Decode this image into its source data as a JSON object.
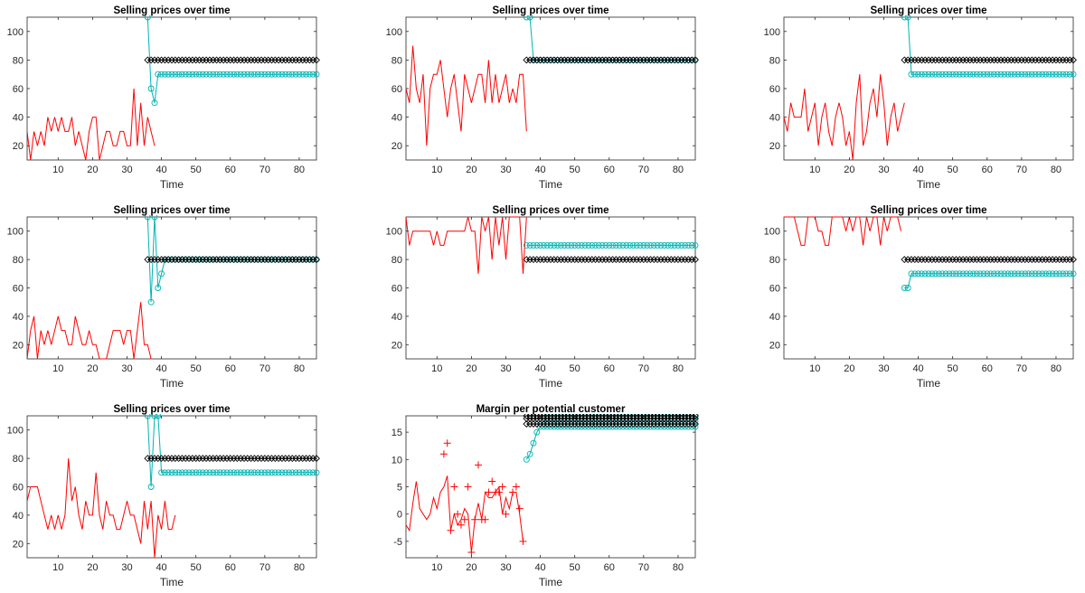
{
  "chart_data": [
    {
      "type": "line",
      "title": "Selling prices over time",
      "xlabel": "Time",
      "xlim": [
        1,
        85
      ],
      "ylim": [
        10,
        110
      ],
      "xticks": [
        10,
        20,
        30,
        40,
        50,
        60,
        70,
        80
      ],
      "yticks": [
        20,
        40,
        60,
        80,
        100
      ],
      "colors": {
        "red": "#ff0000",
        "cyan": "#00b3b3",
        "black": "#000000"
      },
      "series": [
        {
          "color": "red",
          "style": "line",
          "x_start": 1,
          "values": [
            30,
            10,
            30,
            20,
            30,
            20,
            40,
            30,
            40,
            30,
            40,
            30,
            30,
            40,
            20,
            30,
            20,
            10,
            30,
            40,
            40,
            10,
            20,
            30,
            30,
            20,
            20,
            30,
            30,
            20,
            20,
            60,
            20,
            50,
            20,
            40,
            30,
            20
          ]
        },
        {
          "color": "cyan",
          "style": "line-marker",
          "marker": "o",
          "x": [
            36,
            37,
            38,
            39,
            40,
            41,
            42,
            43,
            44,
            45,
            46,
            47,
            48,
            49,
            50,
            51,
            52,
            53,
            54,
            55,
            56,
            57,
            58,
            59,
            60,
            61,
            62,
            63,
            64,
            65,
            66,
            67,
            68,
            69,
            70,
            71,
            72,
            73,
            74,
            75,
            76,
            77,
            78,
            79,
            80,
            81,
            82,
            83,
            84,
            85
          ],
          "values": [
            110,
            60,
            50,
            70,
            70,
            70,
            70,
            70,
            70,
            70,
            70,
            70,
            70,
            70,
            70,
            70,
            70,
            70,
            70,
            70,
            70,
            70,
            70,
            70,
            70,
            70,
            70,
            70,
            70,
            70,
            70,
            70,
            70,
            70,
            70,
            70,
            70,
            70,
            70,
            70,
            70,
            70,
            70,
            70,
            70,
            70,
            70,
            70,
            70,
            70
          ]
        },
        {
          "color": "black",
          "style": "line-marker",
          "marker": "diamond",
          "x_start": 36,
          "x_end": 85,
          "constant": 80
        }
      ]
    },
    {
      "type": "line",
      "title": "Selling prices over time",
      "xlabel": "Time",
      "xlim": [
        1,
        85
      ],
      "ylim": [
        10,
        110
      ],
      "xticks": [
        10,
        20,
        30,
        40,
        50,
        60,
        70,
        80
      ],
      "yticks": [
        20,
        40,
        60,
        80,
        100
      ],
      "series": [
        {
          "color": "red",
          "style": "line",
          "x_start": 1,
          "values": [
            60,
            50,
            90,
            60,
            50,
            70,
            20,
            60,
            70,
            70,
            80,
            60,
            40,
            60,
            70,
            50,
            30,
            70,
            60,
            50,
            60,
            70,
            70,
            50,
            80,
            50,
            70,
            50,
            60,
            70,
            50,
            60,
            50,
            70,
            70,
            30
          ]
        },
        {
          "color": "cyan",
          "style": "line-marker",
          "marker": "o",
          "x_start": 36,
          "x_end": 85,
          "head": [
            110,
            110
          ],
          "constant": 80
        },
        {
          "color": "black",
          "style": "line-marker",
          "marker": "diamond",
          "x_start": 36,
          "x_end": 85,
          "constant": 80
        }
      ]
    },
    {
      "type": "line",
      "title": "Selling prices over time",
      "xlabel": "Time",
      "xlim": [
        1,
        85
      ],
      "ylim": [
        10,
        110
      ],
      "xticks": [
        10,
        20,
        30,
        40,
        50,
        60,
        70,
        80
      ],
      "yticks": [
        20,
        40,
        60,
        80,
        100
      ],
      "series": [
        {
          "color": "red",
          "style": "line",
          "x_start": 1,
          "values": [
            40,
            30,
            50,
            40,
            40,
            40,
            60,
            30,
            40,
            50,
            20,
            40,
            50,
            30,
            20,
            40,
            50,
            40,
            20,
            30,
            10,
            50,
            70,
            20,
            30,
            50,
            60,
            40,
            70,
            50,
            20,
            40,
            50,
            30,
            40,
            50
          ]
        },
        {
          "color": "cyan",
          "style": "line-marker",
          "marker": "o",
          "x_start": 36,
          "x_end": 85,
          "head": [
            110,
            110
          ],
          "constant": 70
        },
        {
          "color": "black",
          "style": "line-marker",
          "marker": "diamond",
          "x_start": 36,
          "x_end": 85,
          "constant": 80
        }
      ]
    },
    {
      "type": "line",
      "title": "Selling prices over time",
      "xlabel": "Time",
      "xlim": [
        1,
        85
      ],
      "ylim": [
        10,
        110
      ],
      "xticks": [
        10,
        20,
        30,
        40,
        50,
        60,
        70,
        80
      ],
      "yticks": [
        20,
        40,
        60,
        80,
        100
      ],
      "series": [
        {
          "color": "red",
          "style": "line",
          "x_start": 1,
          "values": [
            10,
            30,
            40,
            10,
            30,
            20,
            30,
            20,
            30,
            40,
            30,
            30,
            20,
            20,
            40,
            30,
            20,
            20,
            30,
            20,
            20,
            10,
            10,
            10,
            20,
            30,
            30,
            30,
            20,
            30,
            30,
            10,
            30,
            50,
            20,
            20,
            10
          ]
        },
        {
          "color": "cyan",
          "style": "line-marker",
          "marker": "o",
          "x_start": 36,
          "x_end": 85,
          "head": [
            110,
            50,
            110,
            60,
            70
          ],
          "constant": 80
        },
        {
          "color": "black",
          "style": "line-marker",
          "marker": "diamond",
          "x_start": 36,
          "x_end": 85,
          "constant": 80
        }
      ]
    },
    {
      "type": "line",
      "title": "Selling prices over time",
      "xlabel": "Time",
      "xlim": [
        1,
        85
      ],
      "ylim": [
        10,
        110
      ],
      "xticks": [
        10,
        20,
        30,
        40,
        50,
        60,
        70,
        80
      ],
      "yticks": [
        20,
        40,
        60,
        80,
        100
      ],
      "series": [
        {
          "color": "red",
          "style": "line",
          "x_start": 1,
          "values": [
            110,
            90,
            100,
            100,
            100,
            100,
            100,
            100,
            90,
            100,
            90,
            90,
            100,
            100,
            100,
            100,
            100,
            100,
            110,
            100,
            100,
            70,
            110,
            100,
            110,
            80,
            110,
            90,
            110,
            80,
            110,
            110,
            110,
            110,
            70,
            110
          ]
        },
        {
          "color": "cyan",
          "style": "line-marker",
          "marker": "o",
          "x_start": 36,
          "x_end": 85,
          "constant": 90
        },
        {
          "color": "black",
          "style": "line-marker",
          "marker": "diamond",
          "x_start": 36,
          "x_end": 85,
          "constant": 80
        }
      ]
    },
    {
      "type": "line",
      "title": "Selling prices over time",
      "xlabel": "Time",
      "xlim": [
        1,
        85
      ],
      "ylim": [
        10,
        110
      ],
      "xticks": [
        10,
        20,
        30,
        40,
        50,
        60,
        70,
        80
      ],
      "yticks": [
        20,
        40,
        60,
        80,
        100
      ],
      "series": [
        {
          "color": "red",
          "style": "line",
          "x_start": 1,
          "values": [
            110,
            110,
            110,
            110,
            100,
            90,
            90,
            110,
            110,
            110,
            100,
            100,
            90,
            90,
            110,
            110,
            110,
            110,
            100,
            110,
            100,
            110,
            110,
            90,
            110,
            100,
            110,
            110,
            90,
            110,
            100,
            110,
            110,
            110,
            100
          ]
        },
        {
          "color": "cyan",
          "style": "line-marker",
          "marker": "o",
          "x_start": 36,
          "x_end": 85,
          "head": [
            60,
            60
          ],
          "constant": 70
        },
        {
          "color": "black",
          "style": "line-marker",
          "marker": "diamond",
          "x_start": 36,
          "x_end": 85,
          "constant": 80
        }
      ]
    },
    {
      "type": "line",
      "title": "Selling prices over time",
      "xlabel": "Time",
      "xlim": [
        1,
        85
      ],
      "ylim": [
        10,
        110
      ],
      "xticks": [
        10,
        20,
        30,
        40,
        50,
        60,
        70,
        80
      ],
      "yticks": [
        20,
        40,
        60,
        80,
        100
      ],
      "series": [
        {
          "color": "red",
          "style": "line",
          "x_start": 1,
          "values": [
            50,
            60,
            60,
            60,
            50,
            40,
            30,
            40,
            30,
            40,
            30,
            40,
            80,
            50,
            60,
            40,
            30,
            50,
            40,
            40,
            70,
            40,
            30,
            50,
            40,
            40,
            30,
            30,
            40,
            50,
            40,
            40,
            30,
            20,
            50,
            30,
            50,
            10,
            40,
            30,
            50,
            30,
            30,
            40
          ]
        },
        {
          "color": "cyan",
          "style": "line-marker",
          "marker": "o",
          "x_start": 36,
          "x_end": 85,
          "head": [
            110,
            60,
            110,
            110
          ],
          "constant": 70
        },
        {
          "color": "black",
          "style": "line-marker",
          "marker": "diamond",
          "x_start": 36,
          "x_end": 85,
          "constant": 80
        }
      ]
    },
    {
      "type": "line",
      "title": "Margin per potential customer",
      "xlabel": "Time",
      "xlim": [
        1,
        85
      ],
      "ylim": [
        -8,
        18
      ],
      "xticks": [
        10,
        20,
        30,
        40,
        50,
        60,
        70,
        80
      ],
      "yticks": [
        -5,
        0,
        5,
        10,
        15
      ],
      "series": [
        {
          "color": "red",
          "style": "line",
          "x_start": 1,
          "values": [
            -2,
            -3,
            2,
            6,
            1,
            0,
            -1,
            0,
            3,
            1,
            4,
            5,
            7,
            -3,
            0,
            -2,
            -1,
            1,
            0,
            -7,
            -1,
            2,
            -1,
            4,
            3,
            3,
            4,
            5,
            0,
            3,
            1,
            4,
            4,
            0,
            -5
          ]
        },
        {
          "color": "red",
          "style": "marker",
          "marker": "+",
          "points": [
            [
              12,
              11
            ],
            [
              13,
              13
            ],
            [
              14,
              -3
            ],
            [
              15,
              5
            ],
            [
              16,
              0
            ],
            [
              17,
              -2
            ],
            [
              18,
              -1
            ],
            [
              19,
              5
            ],
            [
              20,
              -7
            ],
            [
              21,
              -1
            ],
            [
              22,
              9
            ],
            [
              23,
              -1
            ],
            [
              24,
              -1
            ],
            [
              25,
              4
            ],
            [
              26,
              6
            ],
            [
              27,
              4
            ],
            [
              28,
              4
            ],
            [
              29,
              5
            ],
            [
              30,
              0
            ],
            [
              32,
              4
            ],
            [
              33,
              5
            ],
            [
              34,
              1
            ],
            [
              35,
              -5
            ]
          ]
        },
        {
          "color": "cyan",
          "style": "line-marker",
          "marker": "o",
          "x_start": 36,
          "x_end": 85,
          "head": [
            10,
            11,
            13,
            15,
            16
          ],
          "constant": 17,
          "spread": [
            16,
            18
          ]
        },
        {
          "color": "black",
          "style": "line-marker",
          "marker": "diamond",
          "x_start": 36,
          "x_end": 85,
          "constant": 17.5,
          "spread": [
            16.5,
            18
          ]
        }
      ]
    }
  ]
}
